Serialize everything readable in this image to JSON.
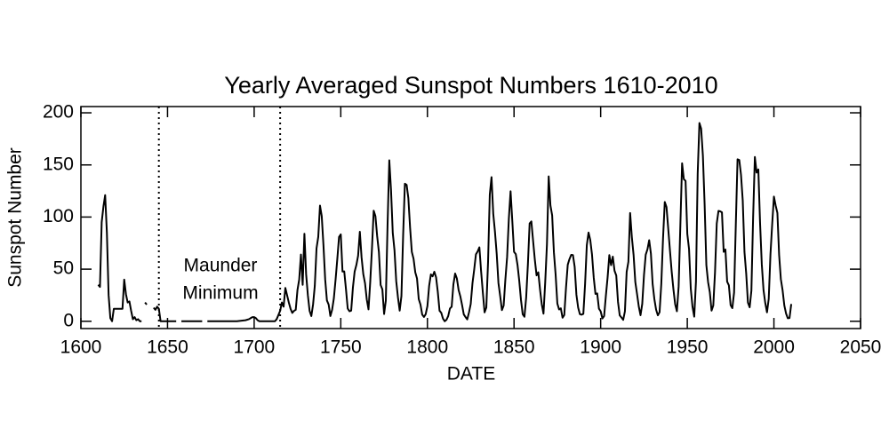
{
  "chart_data": {
    "type": "line",
    "title": "Yearly Averaged Sunspot Numbers 1610-2010",
    "x_label": "DATE",
    "y_label": "Sunspot Number",
    "annotation": [
      "Maunder",
      "Minimum"
    ],
    "vlines": [
      1645,
      1715
    ],
    "xlim": [
      1600,
      2050
    ],
    "xticks": [
      1600,
      1650,
      1700,
      1750,
      1800,
      1850,
      1900,
      1950,
      2000,
      2050
    ],
    "ylim": [
      -7,
      206
    ],
    "yticks": [
      0,
      50,
      100,
      150,
      200
    ],
    "color": "#000000",
    "x": [
      1610,
      1611,
      1612,
      1613,
      1614,
      1615,
      1616,
      1617,
      1618,
      1619,
      1620,
      1621,
      1622,
      1623,
      1624,
      1625,
      1626,
      1627,
      1628,
      1629,
      1630,
      1631,
      1632,
      1633,
      1634,
      1635,
      1636,
      1637,
      1638,
      1639,
      1640,
      1641,
      1642,
      1643,
      1644,
      1645,
      1646,
      1648,
      1652,
      1655,
      1656,
      1658,
      1670,
      1671,
      1673,
      1690,
      1695,
      1697,
      1698,
      1699,
      1700,
      1701,
      1702,
      1703,
      1704,
      1705,
      1706,
      1707,
      1708,
      1709,
      1710,
      1711,
      1712,
      1713,
      1714,
      1715,
      1716,
      1717,
      1718,
      1719,
      1720,
      1721,
      1722,
      1723,
      1724,
      1725,
      1726,
      1727,
      1728,
      1729,
      1730,
      1731,
      1732,
      1733,
      1734,
      1735,
      1736,
      1737,
      1738,
      1739,
      1740,
      1741,
      1742,
      1743,
      1744,
      1745,
      1746,
      1747,
      1748,
      1749,
      1750,
      1751,
      1752,
      1753,
      1754,
      1755,
      1756,
      1757,
      1758,
      1759,
      1760,
      1761,
      1762,
      1763,
      1764,
      1765,
      1766,
      1767,
      1768,
      1769,
      1770,
      1771,
      1772,
      1773,
      1774,
      1775,
      1776,
      1777,
      1778,
      1779,
      1780,
      1781,
      1782,
      1783,
      1784,
      1785,
      1786,
      1787,
      1788,
      1789,
      1790,
      1791,
      1792,
      1793,
      1794,
      1795,
      1796,
      1797,
      1798,
      1799,
      1800,
      1801,
      1802,
      1803,
      1804,
      1805,
      1806,
      1807,
      1808,
      1809,
      1810,
      1811,
      1812,
      1813,
      1814,
      1815,
      1816,
      1817,
      1818,
      1819,
      1820,
      1821,
      1822,
      1823,
      1824,
      1825,
      1826,
      1827,
      1828,
      1829,
      1830,
      1831,
      1832,
      1833,
      1834,
      1835,
      1836,
      1837,
      1838,
      1839,
      1840,
      1841,
      1842,
      1843,
      1844,
      1845,
      1846,
      1847,
      1848,
      1849,
      1850,
      1851,
      1852,
      1853,
      1854,
      1855,
      1856,
      1857,
      1858,
      1859,
      1860,
      1861,
      1862,
      1863,
      1864,
      1865,
      1866,
      1867,
      1868,
      1869,
      1870,
      1871,
      1872,
      1873,
      1874,
      1875,
      1876,
      1877,
      1878,
      1879,
      1880,
      1881,
      1882,
      1883,
      1884,
      1885,
      1886,
      1887,
      1888,
      1889,
      1890,
      1891,
      1892,
      1893,
      1894,
      1895,
      1896,
      1897,
      1898,
      1899,
      1900,
      1901,
      1902,
      1903,
      1904,
      1905,
      1906,
      1907,
      1908,
      1909,
      1910,
      1911,
      1912,
      1913,
      1914,
      1915,
      1916,
      1917,
      1918,
      1919,
      1920,
      1921,
      1922,
      1923,
      1924,
      1925,
      1926,
      1927,
      1928,
      1929,
      1930,
      1931,
      1932,
      1933,
      1934,
      1935,
      1936,
      1937,
      1938,
      1939,
      1940,
      1941,
      1942,
      1943,
      1944,
      1945,
      1946,
      1947,
      1948,
      1949,
      1950,
      1951,
      1952,
      1953,
      1954,
      1955,
      1956,
      1957,
      1958,
      1959,
      1960,
      1961,
      1962,
      1963,
      1964,
      1965,
      1966,
      1967,
      1968,
      1969,
      1970,
      1971,
      1972,
      1973,
      1974,
      1975,
      1976,
      1977,
      1978,
      1979,
      1980,
      1981,
      1982,
      1983,
      1984,
      1985,
      1986,
      1987,
      1988,
      1989,
      1990,
      1991,
      1992,
      1993,
      1994,
      1995,
      1996,
      1997,
      1998,
      1999,
      2000,
      2001,
      2002,
      2003,
      2004,
      2005,
      2006,
      2007,
      2008,
      2009,
      2010
    ],
    "values": [
      35,
      33,
      95,
      110,
      121,
      85,
      25,
      3,
      0,
      12,
      12,
      12,
      12,
      12,
      12,
      40,
      26,
      18,
      19,
      10,
      2,
      4,
      1,
      2,
      0,
      0,
      null,
      18,
      16,
      null,
      null,
      null,
      13,
      11,
      14,
      12,
      0,
      0,
      0,
      0,
      null,
      0,
      0,
      null,
      0,
      0,
      1,
      2,
      3,
      4,
      4,
      3,
      1,
      0,
      0,
      0,
      0,
      0,
      0,
      0,
      0,
      0,
      0,
      2,
      6,
      10,
      18,
      14,
      32,
      25,
      18,
      12,
      8,
      10,
      11,
      30,
      40,
      64,
      35,
      84,
      45,
      25,
      10,
      5,
      16,
      34,
      70,
      81,
      111,
      101,
      73,
      40,
      20,
      16,
      5,
      11,
      22,
      40,
      60,
      80.9,
      83.4,
      47.7,
      47.8,
      30.7,
      12.2,
      9.6,
      10.2,
      32.4,
      47.6,
      54,
      62.9,
      85.9,
      61.2,
      45.1,
      36.4,
      20.9,
      11.4,
      37.8,
      69.8,
      106.1,
      100.8,
      81.6,
      66.5,
      34.8,
      30.6,
      7,
      19.8,
      92.5,
      154.4,
      125.9,
      84.8,
      68.1,
      38.5,
      22.8,
      10.2,
      24.1,
      82.9,
      132,
      130.9,
      118.1,
      89.9,
      66.6,
      60,
      46.9,
      41,
      21.3,
      16,
      6.4,
      4.1,
      6.8,
      14.5,
      34,
      45,
      43.1,
      47.5,
      42.2,
      28.1,
      10.1,
      8.1,
      2.5,
      0,
      1.4,
      5,
      12.2,
      13.9,
      35.4,
      45.8,
      41.1,
      30.1,
      23.9,
      15.6,
      6.6,
      4,
      1.8,
      8.5,
      16.6,
      36.3,
      49.6,
      64.2,
      67,
      70.9,
      47.8,
      27.5,
      8.5,
      13.2,
      56.9,
      121.5,
      138.3,
      103.2,
      85.7,
      64.6,
      36.7,
      24.2,
      10.7,
      15,
      40.1,
      61.5,
      98.5,
      124.7,
      96.3,
      66.6,
      64.5,
      54.1,
      39,
      20.6,
      6.7,
      4.3,
      22.7,
      54.8,
      93.8,
      95.8,
      77.2,
      59.1,
      44,
      47,
      30.5,
      16.3,
      7.3,
      37.6,
      74,
      139,
      111.2,
      101.6,
      66.2,
      44.7,
      17,
      11.3,
      12.4,
      3.4,
      6,
      32.3,
      54.3,
      59.7,
      63.7,
      63.5,
      52.2,
      25.4,
      13.1,
      6.8,
      6.3,
      7.1,
      35.6,
      73,
      85.1,
      78,
      64,
      41.8,
      26.2,
      26.7,
      12.1,
      9.5,
      2.7,
      5,
      24.4,
      42,
      63.5,
      53.8,
      62,
      48.5,
      43.9,
      18.6,
      5.7,
      3.6,
      1.4,
      9.6,
      47.4,
      57.1,
      103.9,
      80.6,
      63.6,
      37.6,
      26.1,
      14.2,
      5.8,
      16.7,
      44.3,
      63.9,
      69,
      77.8,
      64.9,
      35.7,
      21.2,
      11.1,
      5.7,
      8.7,
      36.1,
      79.7,
      114.4,
      109.6,
      88.8,
      67.8,
      47.5,
      30.6,
      16.3,
      9.6,
      33.2,
      92.6,
      151.6,
      136.3,
      134.7,
      83.9,
      69.4,
      31.5,
      13.9,
      4.4,
      38,
      141.7,
      190.2,
      184.8,
      159,
      112.3,
      53.9,
      37.6,
      27.9,
      10.2,
      15.1,
      47,
      93.8,
      105.9,
      105.5,
      104.5,
      66.6,
      68.9,
      38,
      34.5,
      15.5,
      12.6,
      27.5,
      92.5,
      155.4,
      154.7,
      140.5,
      115.9,
      66.6,
      45.9,
      17.9,
      13.4,
      29.4,
      100.2,
      157.6,
      142.6,
      145.7,
      94.3,
      54.6,
      29.9,
      17.5,
      8.6,
      21.5,
      64.3,
      93.3,
      119.6,
      111,
      104,
      63.7,
      40.4,
      29.8,
      15.2,
      7.5,
      2.9,
      3.1,
      16.5
    ]
  }
}
